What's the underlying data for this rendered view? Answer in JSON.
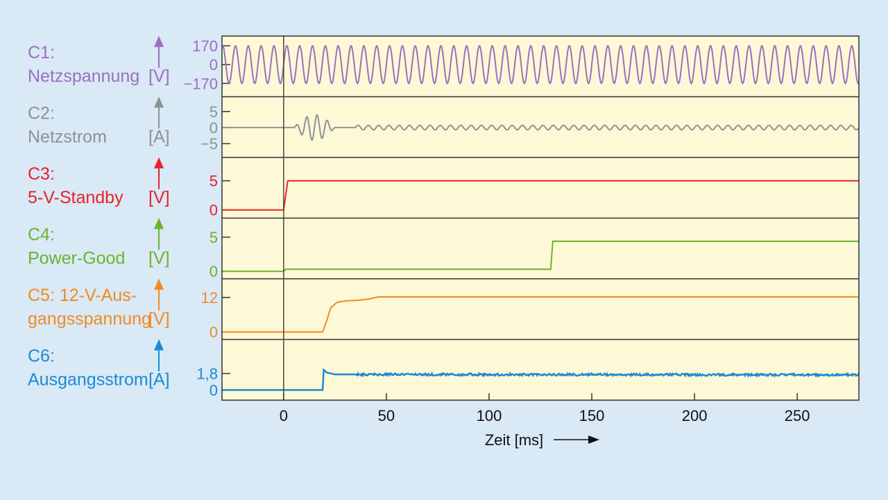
{
  "chart_data": {
    "type": "line",
    "title": "",
    "xlabel": "Zeit [ms]",
    "xlim": [
      -30,
      280
    ],
    "xticks": [
      0,
      50,
      100,
      150,
      200,
      250
    ],
    "xtick_labels": [
      "0",
      "50",
      "100",
      "150",
      "200",
      "250"
    ],
    "marker_line_x": 0,
    "grid": false,
    "panels": [
      {
        "id": "C1",
        "label_line1": "C1:",
        "label_line2": "Netzspannung",
        "unit": "[V]",
        "color": "#9b6fc0",
        "ylim": [
          -290,
          258
        ],
        "yticks": [
          170,
          0,
          -170
        ],
        "ytick_labels": [
          "170",
          "0",
          "−170"
        ],
        "signal": {
          "kind": "sine",
          "amplitude": 170,
          "period_ms": 6.25,
          "from": -30,
          "to": 280
        }
      },
      {
        "id": "C2",
        "label_line1": "C2:",
        "label_line2": "Netzstrom",
        "unit": "[A]",
        "color": "#8a9590",
        "ylim": [
          -9.3,
          9.6
        ],
        "yticks": [
          5,
          0,
          -5
        ],
        "ytick_labels": [
          "5",
          "0",
          "−5"
        ],
        "signal": {
          "kind": "burst",
          "burst_start": 5,
          "burst_end": 25,
          "burst_amplitude": 4,
          "burst_period_ms": 5,
          "ripple_start": 35,
          "ripple_amplitude": 0.7,
          "ripple_period_ms": 5
        }
      },
      {
        "id": "C3",
        "label_line1": "C3:",
        "label_line2": "5-V-Standby",
        "unit": "[V]",
        "color": "#e8212b",
        "ylim": [
          -1.4,
          9.0
        ],
        "yticks": [
          5,
          0
        ],
        "ytick_labels": [
          "5",
          "0"
        ],
        "points": [
          [
            -30,
            0
          ],
          [
            0,
            0
          ],
          [
            2,
            5
          ],
          [
            280,
            5
          ]
        ]
      },
      {
        "id": "C4",
        "label_line1": "C4:",
        "label_line2": "Power-Good",
        "unit": "[V]",
        "color": "#6ab42d",
        "ylim": [
          -1.1,
          7.8
        ],
        "yticks": [
          5,
          0
        ],
        "ytick_labels": [
          "5",
          "0"
        ],
        "points": [
          [
            -30,
            0
          ],
          [
            0,
            0
          ],
          [
            1,
            0.3
          ],
          [
            130,
            0.3
          ],
          [
            131,
            4.4
          ],
          [
            280,
            4.4
          ]
        ]
      },
      {
        "id": "C5",
        "label_line1": "C5: 12-V-Aus-",
        "label_line2": "gangsspannung",
        "unit": "[V]",
        "color": "#f08a24",
        "ylim": [
          -2.6,
          18.5
        ],
        "yticks": [
          12,
          0
        ],
        "ytick_labels": [
          "12",
          "0"
        ],
        "points": [
          [
            -30,
            0
          ],
          [
            19,
            0
          ],
          [
            21,
            4
          ],
          [
            23,
            8.5
          ],
          [
            26,
            10.3
          ],
          [
            30,
            10.8
          ],
          [
            36,
            11
          ],
          [
            42,
            11.5
          ],
          [
            46,
            12.2
          ],
          [
            280,
            12.2
          ]
        ]
      },
      {
        "id": "C6",
        "label_line1": "C6:",
        "label_line2": "Ausgangsstrom",
        "unit": "[A]",
        "color": "#1b8ad3",
        "ylim": [
          -1.1,
          5.5
        ],
        "yticks": [
          1.8,
          0
        ],
        "ytick_labels": [
          "1,8",
          "0"
        ],
        "points": [
          [
            -30,
            0
          ],
          [
            19,
            0
          ],
          [
            19.5,
            2.2
          ],
          [
            21,
            1.9
          ],
          [
            25,
            1.7
          ],
          [
            280,
            1.65
          ]
        ],
        "noise": {
          "from": 35,
          "amplitude": 0.12
        }
      }
    ]
  }
}
